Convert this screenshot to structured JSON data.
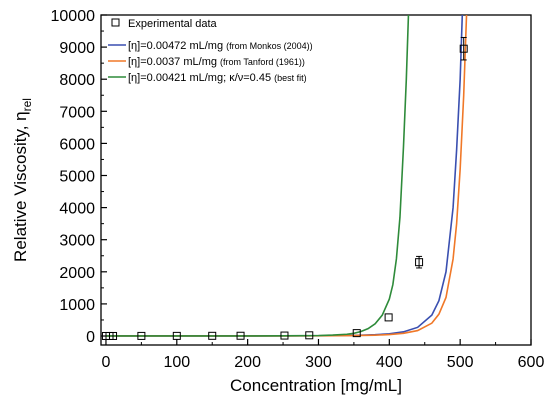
{
  "chart_data": {
    "type": "line",
    "xlabel": "Concentration [mg/mL]",
    "ylabel": "Relative Viscosity, η",
    "ylabel_sub": "rel",
    "xlim": [
      -7,
      600
    ],
    "ylim": [
      -280,
      10000
    ],
    "x_ticks": [
      0,
      100,
      200,
      300,
      400,
      500,
      600
    ],
    "y_ticks": [
      0,
      1000,
      2000,
      3000,
      4000,
      5000,
      6000,
      7000,
      8000,
      9000,
      10000
    ],
    "grid": false,
    "legend_position": "top-left",
    "series": [
      {
        "name": "Experimental data",
        "kind": "scatter",
        "color": "#000000",
        "points": [
          {
            "x": 0,
            "y": 1,
            "err": 0
          },
          {
            "x": 5,
            "y": 1,
            "err": 0
          },
          {
            "x": 10,
            "y": 1,
            "err": 0
          },
          {
            "x": 50,
            "y": 3,
            "err": 0
          },
          {
            "x": 100,
            "y": 4,
            "err": 0
          },
          {
            "x": 150,
            "y": 6,
            "err": 0
          },
          {
            "x": 190,
            "y": 8,
            "err": 0
          },
          {
            "x": 252,
            "y": 14,
            "err": 0
          },
          {
            "x": 287,
            "y": 22,
            "err": 0
          },
          {
            "x": 354,
            "y": 90,
            "err": 0
          },
          {
            "x": 399,
            "y": 580,
            "err": 0
          },
          {
            "x": 442,
            "y": 2300,
            "err": 180
          },
          {
            "x": 505,
            "y": 8950,
            "err": 350
          }
        ]
      },
      {
        "name_main": "[η]=0.00472 mL/mg",
        "name_note": "(from Monkos (2004))",
        "kind": "line",
        "color": "#3a4fb0",
        "points": [
          [
            0,
            1
          ],
          [
            100,
            1.6
          ],
          [
            200,
            3.0
          ],
          [
            250,
            4.5
          ],
          [
            300,
            8
          ],
          [
            350,
            20
          ],
          [
            380,
            40
          ],
          [
            400,
            70
          ],
          [
            420,
            130
          ],
          [
            440,
            270
          ],
          [
            460,
            650
          ],
          [
            470,
            1100
          ],
          [
            480,
            2000
          ],
          [
            490,
            4000
          ],
          [
            495,
            5800
          ],
          [
            500,
            8000
          ],
          [
            503,
            10000
          ]
        ]
      },
      {
        "name_main": "[η]=0.0037 mL/mg",
        "name_note": "(from Tanford (1961))",
        "kind": "line",
        "color": "#f07828",
        "points": [
          [
            0,
            1
          ],
          [
            100,
            1.5
          ],
          [
            200,
            2.6
          ],
          [
            250,
            3.8
          ],
          [
            300,
            6
          ],
          [
            350,
            14
          ],
          [
            380,
            27
          ],
          [
            400,
            45
          ],
          [
            420,
            85
          ],
          [
            440,
            170
          ],
          [
            460,
            400
          ],
          [
            470,
            680
          ],
          [
            480,
            1200
          ],
          [
            490,
            2400
          ],
          [
            495,
            3500
          ],
          [
            500,
            5200
          ],
          [
            505,
            7500
          ],
          [
            509,
            10000
          ]
        ]
      },
      {
        "name_main": "[η]=0.00421 mL/mg; κ/ν=0.45",
        "name_note": "(best fit)",
        "kind": "line",
        "color": "#2e8b3a",
        "points": [
          [
            0,
            1
          ],
          [
            100,
            1.5
          ],
          [
            200,
            3
          ],
          [
            250,
            6
          ],
          [
            300,
            15
          ],
          [
            320,
            30
          ],
          [
            340,
            55
          ],
          [
            350,
            85
          ],
          [
            360,
            140
          ],
          [
            370,
            230
          ],
          [
            380,
            380
          ],
          [
            390,
            650
          ],
          [
            400,
            1150
          ],
          [
            405,
            1600
          ],
          [
            410,
            2400
          ],
          [
            415,
            3700
          ],
          [
            420,
            5900
          ],
          [
            424,
            8000
          ],
          [
            427,
            10000
          ]
        ]
      }
    ]
  }
}
